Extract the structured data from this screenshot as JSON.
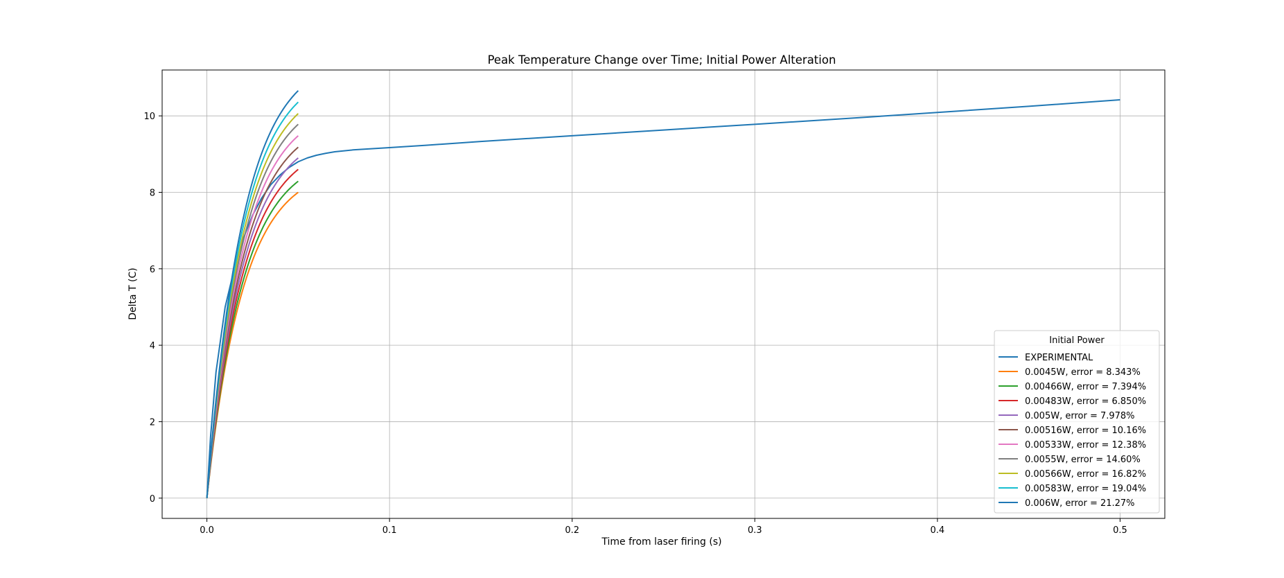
{
  "chart_data": {
    "type": "line",
    "title": "Peak Temperature Change over Time; Initial Power Alteration",
    "xlabel": "Time from laser firing (s)",
    "ylabel": "Delta T (C)",
    "xlim": [
      -0.0245,
      0.5245
    ],
    "ylim": [
      -0.53,
      11.2
    ],
    "xticks": [
      0.0,
      0.1,
      0.2,
      0.3,
      0.4,
      0.5
    ],
    "xtick_labels": [
      "0.0",
      "0.1",
      "0.2",
      "0.3",
      "0.4",
      "0.5"
    ],
    "yticks": [
      0,
      2,
      4,
      6,
      8,
      10
    ],
    "ytick_labels": [
      "0",
      "2",
      "4",
      "6",
      "8",
      "10"
    ],
    "grid": true,
    "legend": {
      "title": "Initial Power",
      "placement": "lower right"
    },
    "series": [
      {
        "name": "EXPERIMENTAL",
        "color": "#1f77b4",
        "x": [
          0,
          0.002,
          0.005,
          0.01,
          0.015,
          0.02,
          0.025,
          0.03,
          0.035,
          0.04,
          0.045,
          0.05,
          0.055,
          0.06,
          0.065,
          0.07,
          0.08,
          0.09,
          0.1,
          0.12,
          0.15,
          0.2,
          0.25,
          0.3,
          0.35,
          0.4,
          0.45,
          0.5
        ],
        "y": [
          0,
          1.6,
          3.3,
          5.0,
          6.0,
          6.8,
          7.4,
          7.85,
          8.2,
          8.45,
          8.65,
          8.8,
          8.9,
          8.97,
          9.02,
          9.06,
          9.11,
          9.14,
          9.17,
          9.23,
          9.33,
          9.48,
          9.63,
          9.78,
          9.93,
          10.09,
          10.25,
          10.42
        ]
      },
      {
        "name": "0.0045W, error = 8.343%",
        "color": "#ff7f0e",
        "final": 8.0
      },
      {
        "name": "0.00466W, error = 7.394%",
        "color": "#2ca02c",
        "final": 8.29
      },
      {
        "name": "0.00483W, error = 6.850%",
        "color": "#d62728",
        "final": 8.6
      },
      {
        "name": "0.005W, error = 7.978%",
        "color": "#9467bd",
        "final": 8.9
      },
      {
        "name": "0.00516W, error = 10.16%",
        "color": "#8c564b",
        "final": 9.18
      },
      {
        "name": "0.00533W, error = 12.38%",
        "color": "#e377c2",
        "final": 9.48
      },
      {
        "name": "0.0055W, error = 14.60%",
        "color": "#7f7f7f",
        "final": 9.78
      },
      {
        "name": "0.00566W, error = 16.82%",
        "color": "#bcbd22",
        "final": 10.06
      },
      {
        "name": "0.00583W, error = 19.04%",
        "color": "#17becf",
        "final": 10.36
      },
      {
        "name": "0.006W, error = 21.27%",
        "color": "#1f77b4",
        "final": 10.66
      }
    ],
    "simulated_curve": {
      "x_end": 0.05,
      "time_constant": 0.02
    }
  }
}
